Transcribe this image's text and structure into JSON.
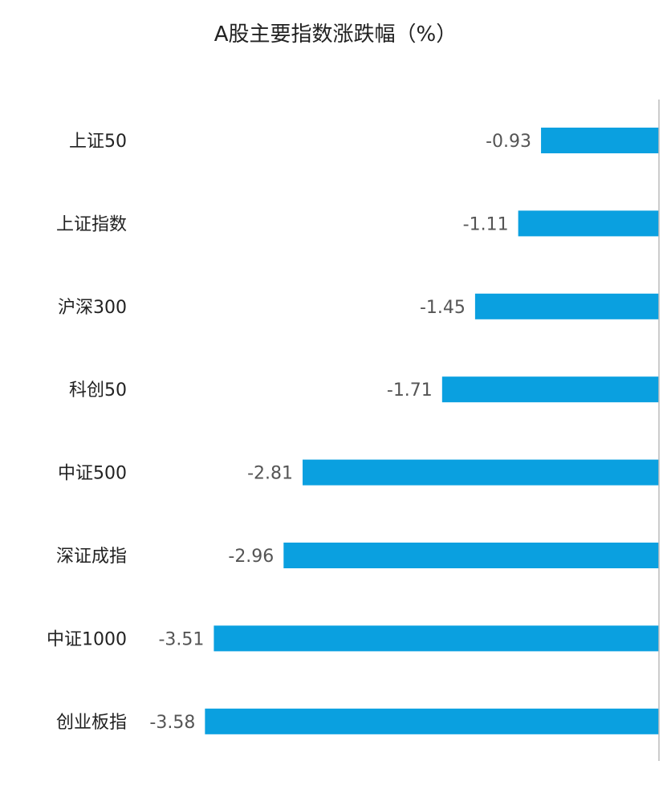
{
  "chart_data": {
    "type": "bar",
    "orientation": "horizontal",
    "title": "A股主要指数涨跌幅（%）",
    "categories": [
      "上证50",
      "上证指数",
      "沪深300",
      "科创50",
      "中证500",
      "深证成指",
      "中证1000",
      "创业板指"
    ],
    "values": [
      -0.93,
      -1.11,
      -1.45,
      -1.71,
      -2.81,
      -2.96,
      -3.51,
      -3.58
    ],
    "value_labels": [
      "-0.93",
      "-1.11",
      "-1.45",
      "-1.71",
      "-2.81",
      "-2.96",
      "-3.51",
      "-3.58"
    ],
    "xlim": [
      -4.6,
      0
    ],
    "bar_color": "#0aa0e0",
    "axis_color": "#bbbbbb",
    "grid": false,
    "legend": "none"
  }
}
